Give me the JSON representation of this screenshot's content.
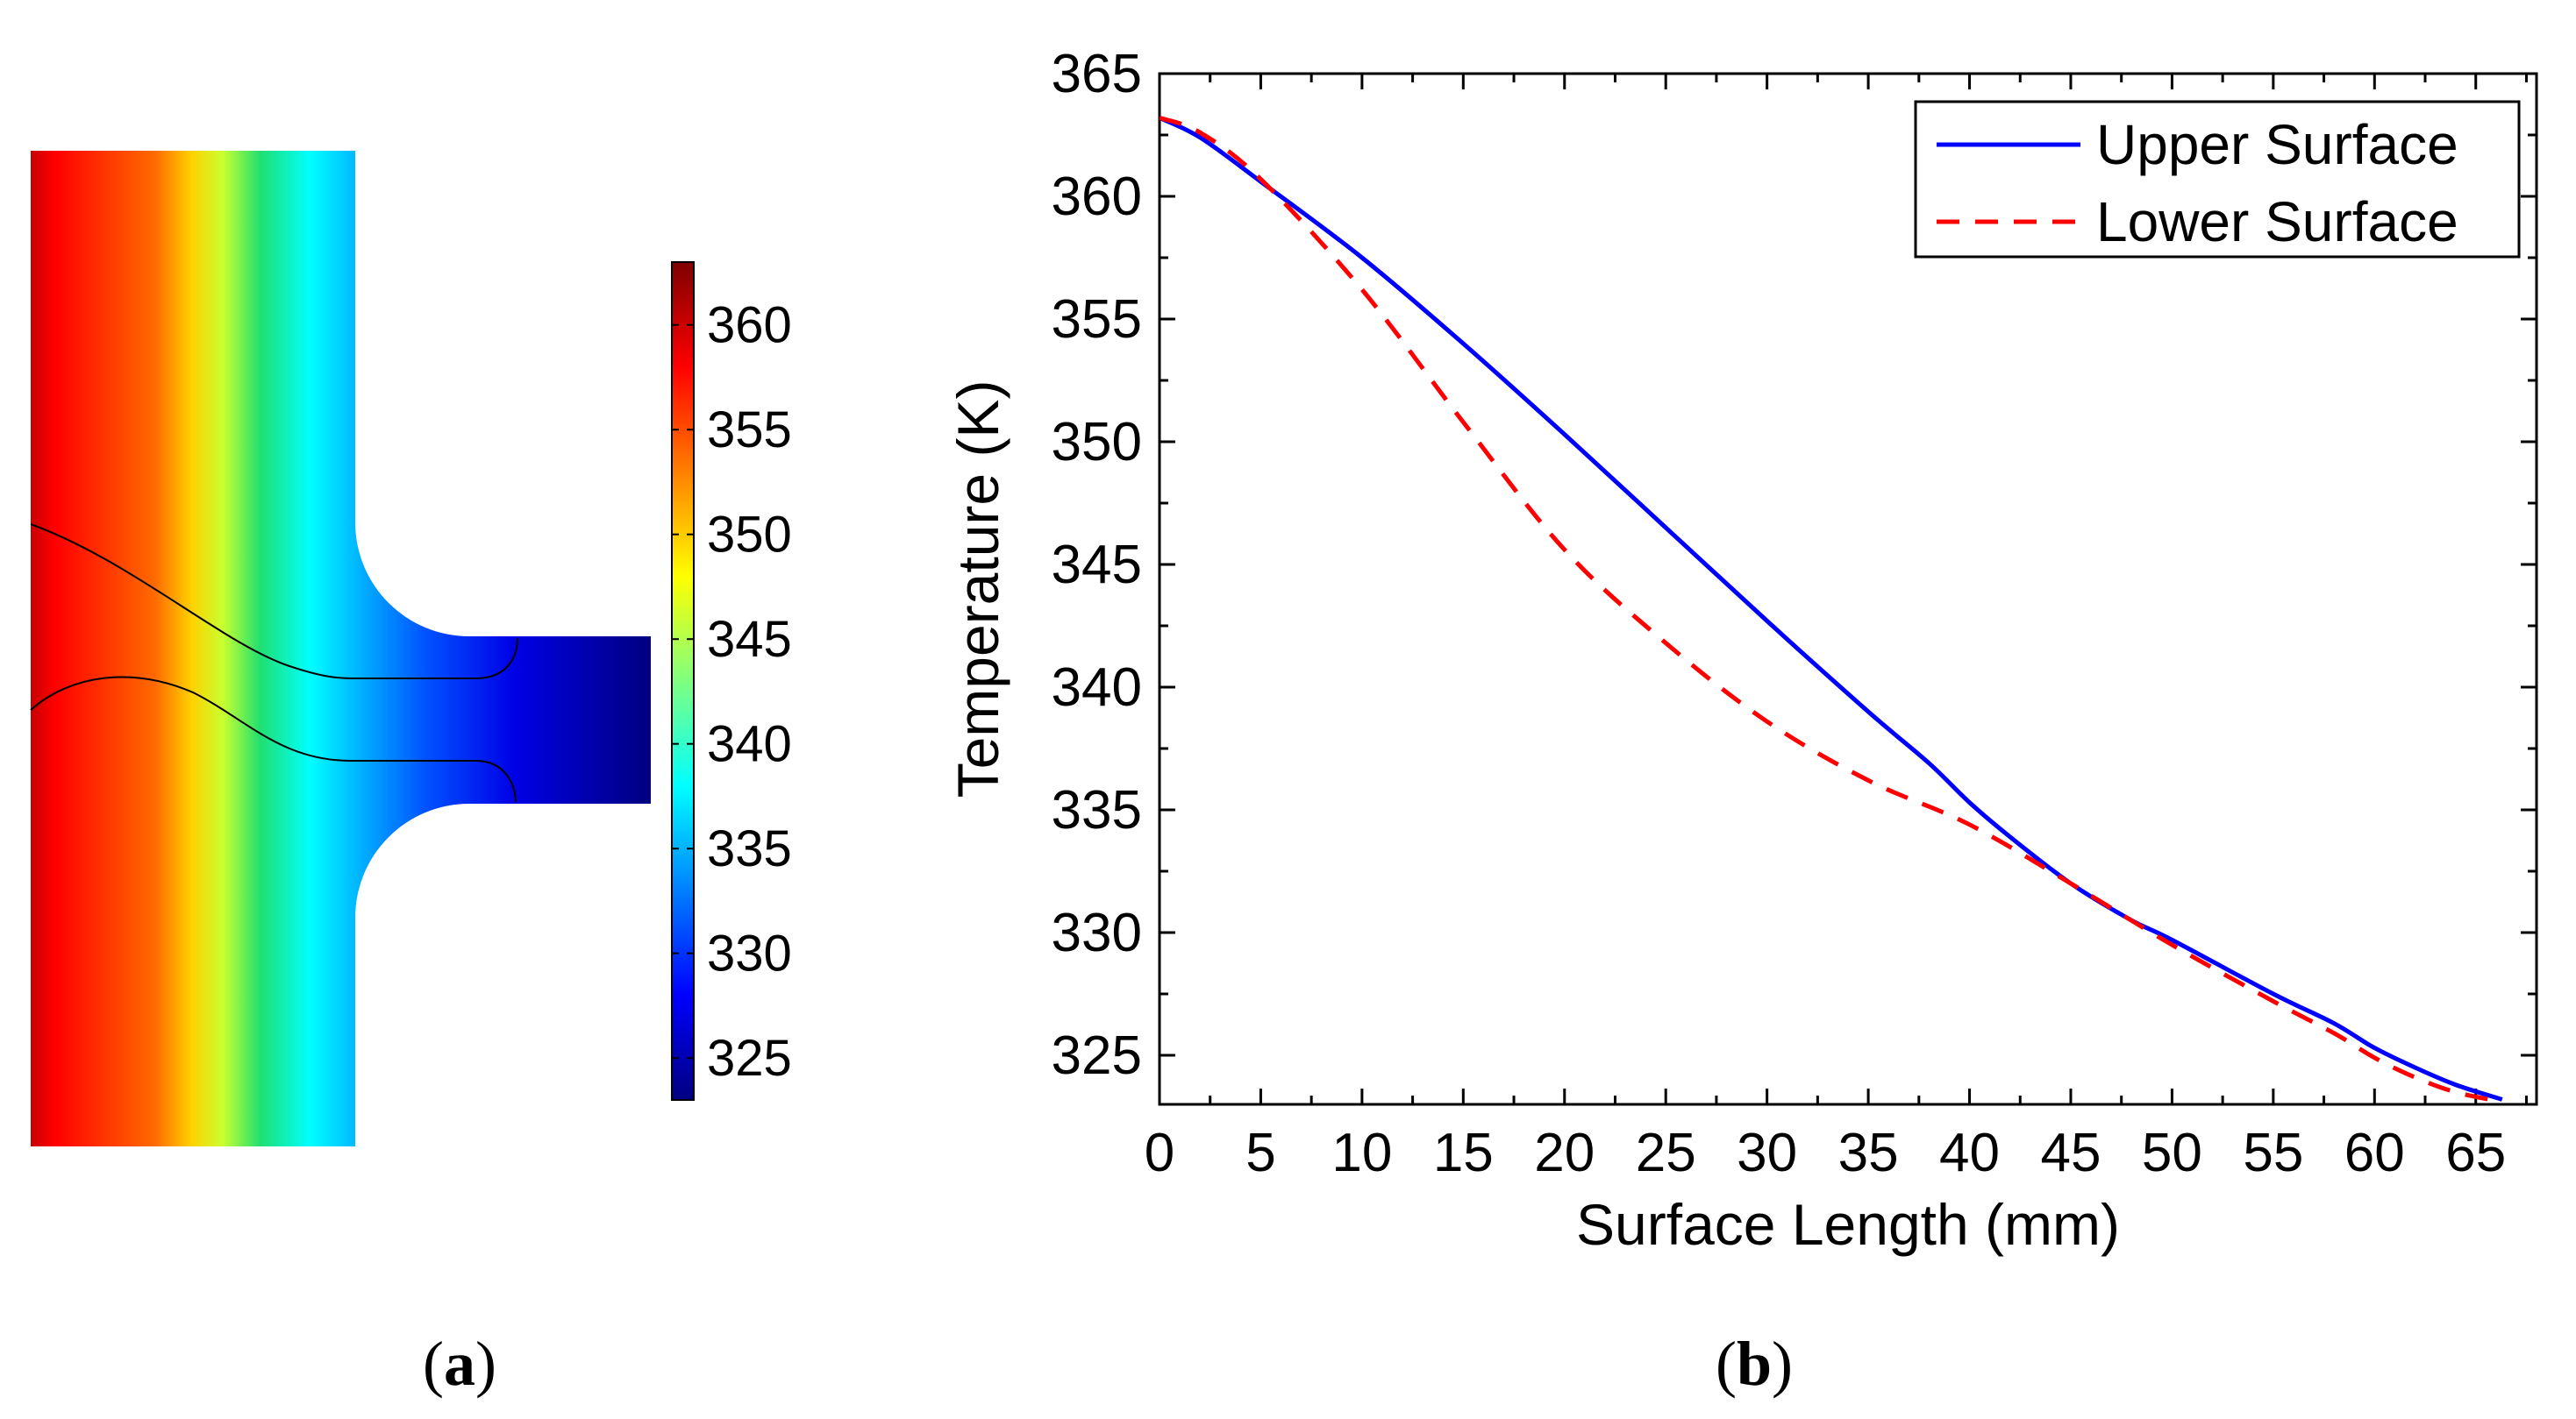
{
  "panel_a": {
    "label_open": "(",
    "label_letter": "a",
    "label_close": ")",
    "colorbar": {
      "min": 323,
      "max": 363,
      "ticks": [
        "360",
        "355",
        "350",
        "345",
        "340",
        "335",
        "330",
        "325"
      ],
      "colors": [
        "#00007f",
        "#0000ff",
        "#00ffff",
        "#ffff00",
        "#ff0000",
        "#7f0000"
      ]
    }
  },
  "panel_b": {
    "label_open": "(",
    "label_letter": "b",
    "label_close": ")"
  },
  "chart_data": {
    "type": "line",
    "title": "",
    "xlabel": "Surface Length (mm)",
    "ylabel": "Temperature (K)",
    "xlim": [
      0,
      68
    ],
    "ylim": [
      323,
      365
    ],
    "xticks": [
      "0",
      "5",
      "10",
      "15",
      "20",
      "25",
      "30",
      "35",
      "40",
      "45",
      "50",
      "55",
      "60",
      "65"
    ],
    "yticks": [
      "365",
      "360",
      "355",
      "350",
      "345",
      "340",
      "335",
      "330",
      "325"
    ],
    "grid": false,
    "legend_position": "top-right",
    "series": [
      {
        "name": "Upper Surface",
        "color": "#0000ff",
        "style": "solid",
        "x": [
          0,
          2,
          5,
          10,
          15,
          20,
          25,
          30,
          35,
          38,
          40,
          42,
          45,
          48,
          50,
          55,
          58,
          60,
          62,
          64,
          66.3
        ],
        "y": [
          363.2,
          362.4,
          360.6,
          357.5,
          354.0,
          350.3,
          346.5,
          342.7,
          339.0,
          336.9,
          335.3,
          333.9,
          332.0,
          330.5,
          329.7,
          327.5,
          326.3,
          325.3,
          324.5,
          323.8,
          323.2
        ]
      },
      {
        "name": "Lower Surface",
        "color": "#ff0000",
        "style": "dashed",
        "x": [
          0,
          2,
          5,
          10,
          15,
          20,
          25,
          30,
          35,
          40,
          45,
          50,
          55,
          58,
          60,
          62,
          64,
          66.3
        ],
        "y": [
          363.2,
          362.6,
          360.7,
          356.2,
          350.8,
          345.6,
          341.8,
          338.6,
          336.2,
          334.4,
          332.0,
          329.5,
          327.2,
          325.9,
          324.9,
          324.1,
          323.5,
          323.1
        ]
      }
    ]
  }
}
